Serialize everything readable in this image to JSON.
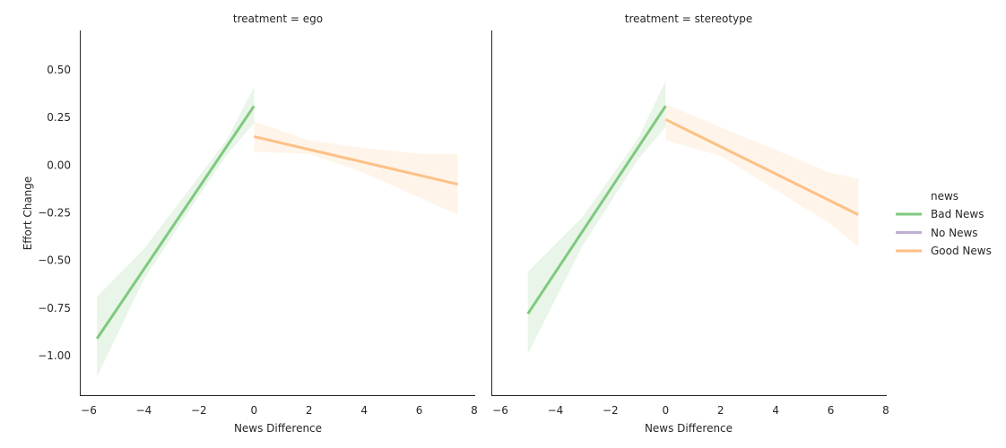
{
  "chart_data": [
    {
      "type": "line",
      "title": "treatment = ego",
      "xlabel": "News Difference",
      "ylabel": "Effort Change",
      "xlim": [
        -6.3,
        8
      ],
      "ylim": [
        -1.2,
        0.7
      ],
      "xticks": [
        -6,
        -4,
        -2,
        0,
        2,
        4,
        6,
        8
      ],
      "xtick_labels": [
        "−6",
        "−4",
        "−2",
        "0",
        "2",
        "4",
        "6",
        "8"
      ],
      "yticks": [
        0.5,
        0.25,
        0.0,
        -0.25,
        -0.5,
        -0.75,
        -1.0
      ],
      "ytick_labels": [
        "0.50",
        "0.25",
        "0.00",
        "−0.25",
        "−0.50",
        "−0.75",
        "−1.00"
      ],
      "grid": false,
      "series": [
        {
          "name": "Bad News",
          "color": "#7fc97f",
          "x": [
            -5.7,
            0.0
          ],
          "y": [
            -0.91,
            0.31
          ],
          "ci_lower": [
            [
              -5.7,
              -1.11
            ],
            [
              -4.0,
              -0.6
            ],
            [
              -2.0,
              -0.16
            ],
            [
              -1.0,
              0.05
            ],
            [
              0.0,
              0.22
            ]
          ],
          "ci_upper": [
            [
              -5.7,
              -0.69
            ],
            [
              -4.0,
              -0.44
            ],
            [
              -2.0,
              -0.06
            ],
            [
              -1.0,
              0.13
            ],
            [
              0.0,
              0.41
            ]
          ]
        },
        {
          "name": "No News",
          "color": "#beaed4",
          "x": [],
          "y": []
        },
        {
          "name": "Good News",
          "color": "#fdc086",
          "x": [
            0.0,
            7.4
          ],
          "y": [
            0.15,
            -0.1
          ],
          "ci_lower": [
            [
              0.0,
              0.07
            ],
            [
              2.0,
              0.06
            ],
            [
              4.0,
              -0.04
            ],
            [
              6.0,
              -0.17
            ],
            [
              7.4,
              -0.26
            ]
          ],
          "ci_upper": [
            [
              0.0,
              0.23
            ],
            [
              2.0,
              0.13
            ],
            [
              4.0,
              0.09
            ],
            [
              6.0,
              0.06
            ],
            [
              7.4,
              0.06
            ]
          ]
        }
      ]
    },
    {
      "type": "line",
      "title": "treatment = stereotype",
      "xlabel": "News Difference",
      "ylabel": "",
      "xlim": [
        -6.3,
        8
      ],
      "ylim": [
        -1.2,
        0.7
      ],
      "xticks": [
        -6,
        -4,
        -2,
        0,
        2,
        4,
        6,
        8
      ],
      "xtick_labels": [
        "−6",
        "−4",
        "−2",
        "0",
        "2",
        "4",
        "6",
        "8"
      ],
      "yticks": [],
      "ytick_labels": [],
      "grid": false,
      "series": [
        {
          "name": "Bad News",
          "color": "#7fc97f",
          "x": [
            -5.0,
            0.0
          ],
          "y": [
            -0.78,
            0.31
          ],
          "ci_lower": [
            [
              -5.0,
              -0.99
            ],
            [
              -3.0,
              -0.42
            ],
            [
              -1.0,
              0.03
            ],
            [
              0.0,
              0.2
            ]
          ],
          "ci_upper": [
            [
              -5.0,
              -0.56
            ],
            [
              -3.0,
              -0.27
            ],
            [
              -1.0,
              0.14
            ],
            [
              0.0,
              0.44
            ]
          ]
        },
        {
          "name": "No News",
          "color": "#beaed4",
          "x": [],
          "y": []
        },
        {
          "name": "Good News",
          "color": "#fdc086",
          "x": [
            0.0,
            7.0
          ],
          "y": [
            0.24,
            -0.26
          ],
          "ci_lower": [
            [
              0.0,
              0.13
            ],
            [
              2.0,
              0.05
            ],
            [
              4.0,
              -0.13
            ],
            [
              6.0,
              -0.31
            ],
            [
              7.0,
              -0.43
            ]
          ],
          "ci_upper": [
            [
              0.0,
              0.32
            ],
            [
              2.0,
              0.2
            ],
            [
              4.0,
              0.08
            ],
            [
              6.0,
              -0.04
            ],
            [
              7.0,
              -0.07
            ]
          ]
        }
      ]
    }
  ],
  "legend": {
    "title": "news",
    "placement": "right",
    "entries": [
      {
        "label": "Bad News",
        "color": "#7fc97f"
      },
      {
        "label": "No News",
        "color": "#beaed4"
      },
      {
        "label": "Good News",
        "color": "#fdc086"
      }
    ]
  }
}
